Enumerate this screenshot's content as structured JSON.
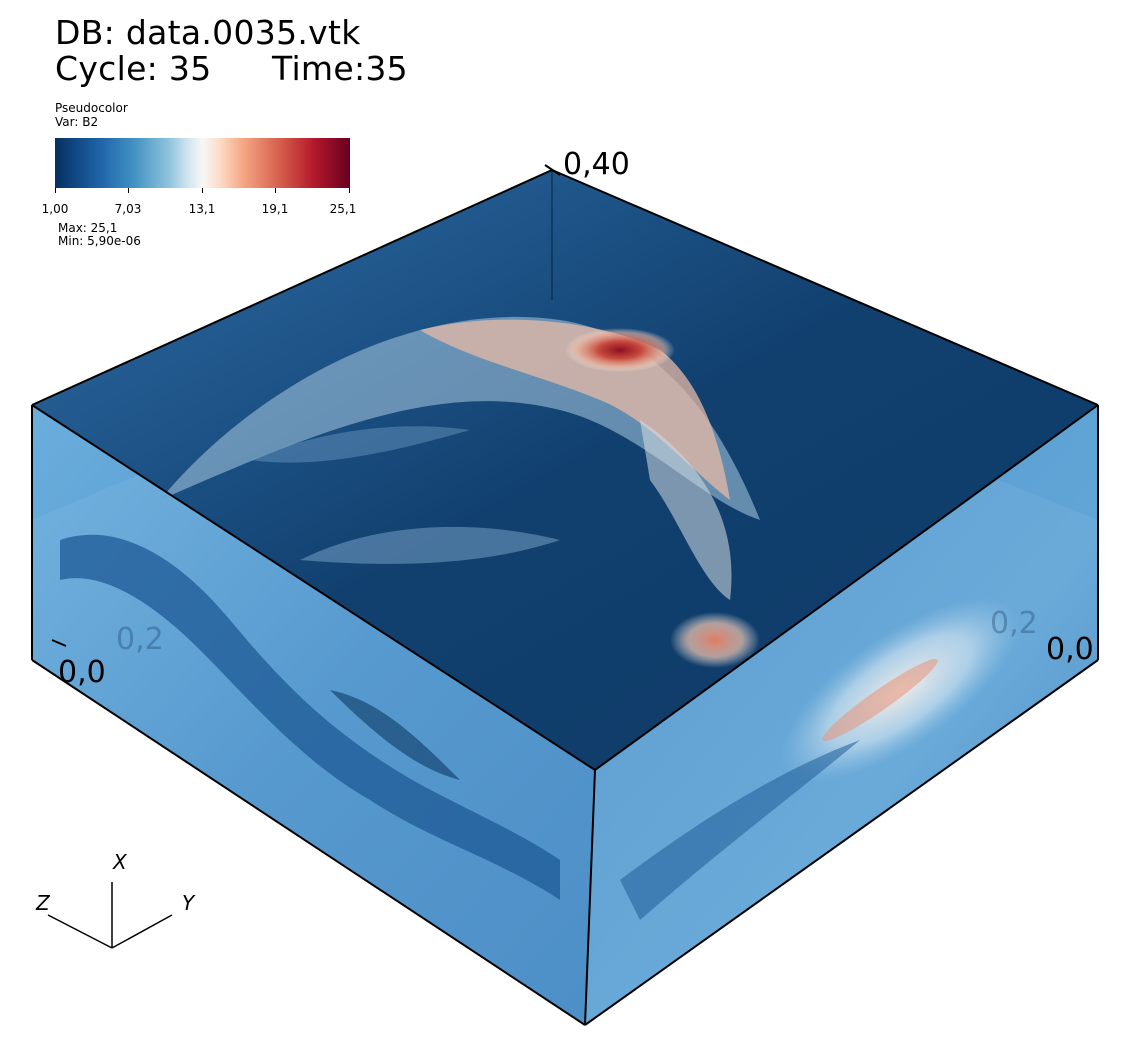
{
  "header": {
    "db": "DB: data.0035.vtk",
    "cycle": "Cycle: 35",
    "time": "Time:35"
  },
  "legend": {
    "title": "Pseudocolor",
    "var": "Var: B2",
    "ticks": [
      "1,00",
      "7,03",
      "13,1",
      "19,1",
      "25,1"
    ],
    "max": "Max:  25,1",
    "min": "Min:  5,90e-06",
    "colormap": [
      "#053061",
      "#2166ac",
      "#4393c3",
      "#92c5de",
      "#d1e5f0",
      "#f7f7f7",
      "#fddbc7",
      "#f4a582",
      "#d6604d",
      "#b2182b",
      "#67001f"
    ]
  },
  "axes": {
    "top_label": "0,40",
    "left_origin": "0,0",
    "right_origin": "0,0",
    "left_faint": "0,2",
    "right_faint": "0,2"
  },
  "triad": {
    "x": "X",
    "y": "Y",
    "z": "Z"
  }
}
